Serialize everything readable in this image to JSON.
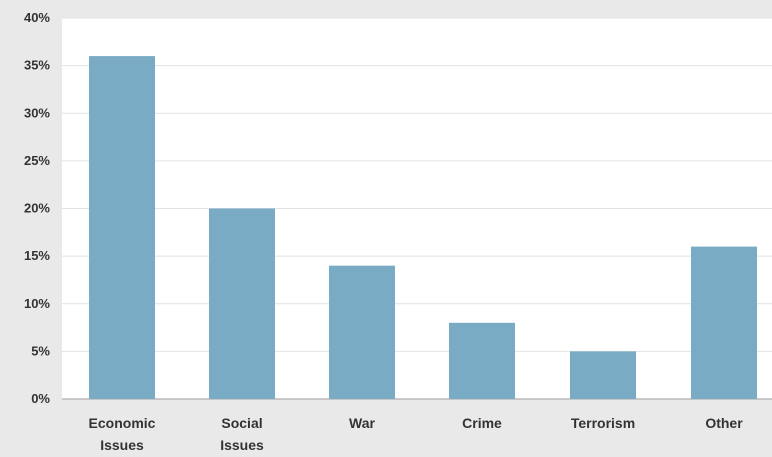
{
  "chart_data": {
    "type": "bar",
    "title": "",
    "xlabel": "",
    "ylabel": "",
    "categories": [
      [
        "Economic",
        "Issues"
      ],
      [
        "Social",
        "Issues"
      ],
      [
        "War"
      ],
      [
        "Crime"
      ],
      [
        "Terrorism"
      ],
      [
        "Other"
      ]
    ],
    "values": [
      36,
      20,
      14,
      8,
      5,
      16
    ],
    "ylim": [
      0,
      40
    ],
    "yticks": [
      "0%",
      "5%",
      "10%",
      "15%",
      "20%",
      "25%",
      "30%",
      "35%",
      "40%"
    ],
    "grid": true,
    "legend": "none"
  },
  "colors": {
    "bar": "#7aabc4",
    "plot_background": "#ffffff",
    "page_background": "#e9e9e9",
    "gridline": "#e2e2e2",
    "axis": "#bbbbbb"
  }
}
